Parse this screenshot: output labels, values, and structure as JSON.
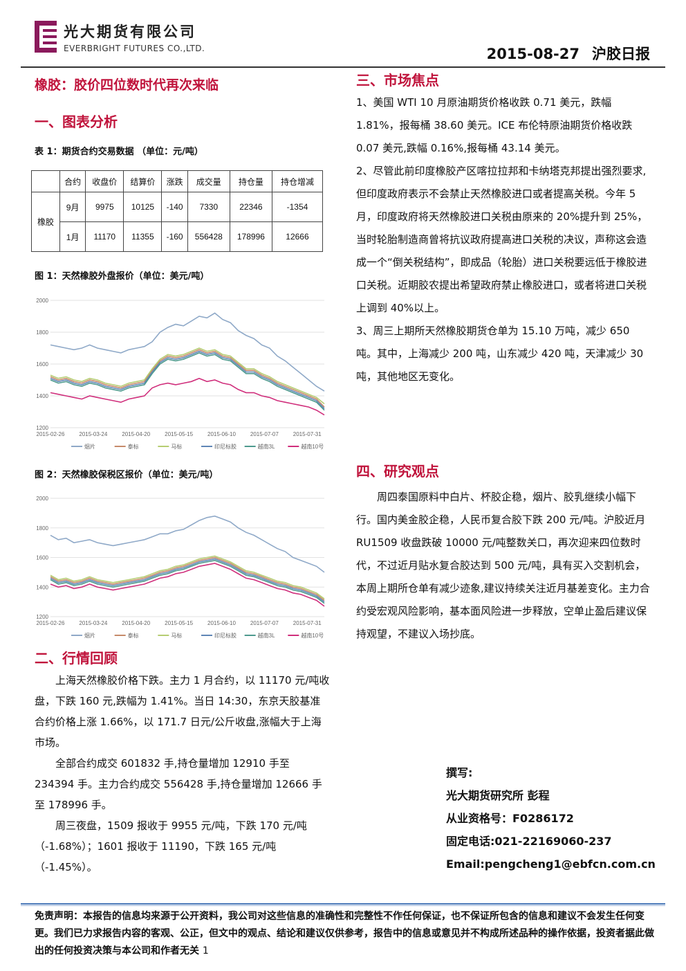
{
  "header": {
    "company_cn": "光大期货有限公司",
    "company_en": "EVERBRIGHT FUTURES CO.,LTD.",
    "date": "2015-08-27",
    "report_name": "沪胶日报",
    "brand_color": "#8b1a5c"
  },
  "main_title": "橡胶：胶价四位数时代再次来临",
  "section1": {
    "heading": "一、图表分析",
    "table_caption": "表 1：期货合约交易数据 （单位：元/吨）",
    "table": {
      "headers": [
        "合约",
        "收盘价",
        "结算价",
        "涨跌",
        "成交量",
        "持仓量",
        "持仓增减"
      ],
      "row_label": "橡胶",
      "rows": [
        [
          "9月",
          "9975",
          "10125",
          "-140",
          "7330",
          "22346",
          "-1354"
        ],
        [
          "1月",
          "11170",
          "11355",
          "-160",
          "556428",
          "178996",
          "12666"
        ]
      ]
    },
    "figure1_caption": "图 1：天然橡胶外盘报价（单位：美元/吨）",
    "figure2_caption": "图 2：天然橡胶保税区报价（单位：美元/吨）"
  },
  "chart_data": [
    {
      "type": "line",
      "title": "",
      "ylim": [
        1200,
        2000
      ],
      "yticks": [
        "2000",
        "1800",
        "1600",
        "1400",
        "1200"
      ],
      "xticks": [
        "2015-02-26",
        "2015-03-24",
        "2015-04-20",
        "2015-05-15",
        "2015-06-10",
        "2015-07-07",
        "2015-07-31"
      ],
      "legend_position": "bottom",
      "series": [
        {
          "name": "烟片",
          "color": "#8fa9c8",
          "values": [
            1720,
            1710,
            1700,
            1690,
            1700,
            1720,
            1700,
            1690,
            1680,
            1670,
            1690,
            1700,
            1710,
            1740,
            1800,
            1830,
            1850,
            1840,
            1870,
            1900,
            1890,
            1920,
            1880,
            1860,
            1810,
            1780,
            1760,
            1720,
            1700,
            1650,
            1620,
            1580,
            1540,
            1500,
            1460,
            1430
          ]
        },
        {
          "name": "泰标",
          "color": "#c68a6a",
          "values": [
            1520,
            1500,
            1510,
            1490,
            1480,
            1500,
            1490,
            1470,
            1460,
            1450,
            1470,
            1480,
            1490,
            1560,
            1620,
            1650,
            1640,
            1650,
            1670,
            1690,
            1670,
            1680,
            1650,
            1640,
            1600,
            1560,
            1560,
            1530,
            1510,
            1480,
            1460,
            1440,
            1420,
            1400,
            1380,
            1330
          ]
        },
        {
          "name": "马标",
          "color": "#b6cd72",
          "values": [
            1530,
            1510,
            1520,
            1500,
            1490,
            1510,
            1500,
            1480,
            1470,
            1460,
            1480,
            1490,
            1500,
            1570,
            1630,
            1660,
            1650,
            1660,
            1680,
            1700,
            1680,
            1690,
            1660,
            1650,
            1610,
            1570,
            1570,
            1540,
            1520,
            1490,
            1470,
            1450,
            1430,
            1410,
            1390,
            1350
          ]
        },
        {
          "name": "印尼标胶",
          "color": "#5f86b6",
          "values": [
            1510,
            1490,
            1500,
            1480,
            1470,
            1490,
            1480,
            1460,
            1450,
            1440,
            1460,
            1470,
            1480,
            1550,
            1610,
            1640,
            1630,
            1640,
            1660,
            1680,
            1660,
            1670,
            1640,
            1630,
            1590,
            1550,
            1550,
            1520,
            1500,
            1470,
            1450,
            1430,
            1410,
            1390,
            1370,
            1320
          ]
        },
        {
          "name": "越南3L",
          "color": "#4e9a8e",
          "values": [
            1500,
            1480,
            1490,
            1470,
            1460,
            1480,
            1470,
            1450,
            1440,
            1430,
            1450,
            1460,
            1470,
            1540,
            1600,
            1630,
            1620,
            1630,
            1650,
            1670,
            1650,
            1660,
            1630,
            1620,
            1580,
            1540,
            1540,
            1510,
            1490,
            1460,
            1440,
            1420,
            1400,
            1380,
            1360,
            1310
          ]
        },
        {
          "name": "越南10号",
          "color": "#d02f7c",
          "values": [
            1420,
            1410,
            1400,
            1390,
            1380,
            1400,
            1390,
            1380,
            1370,
            1360,
            1380,
            1390,
            1400,
            1450,
            1470,
            1480,
            1470,
            1480,
            1490,
            1510,
            1490,
            1500,
            1480,
            1470,
            1440,
            1420,
            1420,
            1400,
            1390,
            1370,
            1360,
            1350,
            1340,
            1330,
            1310,
            1280
          ]
        }
      ]
    },
    {
      "type": "line",
      "title": "",
      "ylim": [
        1200,
        2000
      ],
      "yticks": [
        "2000",
        "1800",
        "1600",
        "1400",
        "1200"
      ],
      "xticks": [
        "2015-02-26",
        "2015-03-24",
        "2015-04-20",
        "2015-05-15",
        "2015-06-10",
        "2015-07-07",
        "2015-07-31"
      ],
      "legend_position": "bottom",
      "series": [
        {
          "name": "烟片",
          "color": "#8fa9c8",
          "values": [
            1750,
            1720,
            1730,
            1700,
            1710,
            1720,
            1700,
            1690,
            1680,
            1690,
            1700,
            1710,
            1720,
            1740,
            1760,
            1760,
            1780,
            1790,
            1820,
            1850,
            1870,
            1880,
            1860,
            1840,
            1800,
            1770,
            1750,
            1720,
            1690,
            1660,
            1640,
            1600,
            1580,
            1560,
            1540,
            1500
          ]
        },
        {
          "name": "泰标",
          "color": "#c68a6a",
          "values": [
            1470,
            1440,
            1450,
            1430,
            1440,
            1460,
            1440,
            1430,
            1420,
            1430,
            1440,
            1450,
            1460,
            1480,
            1500,
            1510,
            1530,
            1540,
            1560,
            1580,
            1590,
            1600,
            1580,
            1560,
            1530,
            1500,
            1490,
            1470,
            1450,
            1430,
            1420,
            1400,
            1390,
            1370,
            1350,
            1310
          ]
        },
        {
          "name": "马标",
          "color": "#b6cd72",
          "values": [
            1480,
            1450,
            1460,
            1440,
            1450,
            1470,
            1450,
            1440,
            1430,
            1440,
            1450,
            1460,
            1470,
            1490,
            1510,
            1520,
            1540,
            1550,
            1570,
            1590,
            1600,
            1610,
            1590,
            1570,
            1540,
            1510,
            1500,
            1480,
            1460,
            1440,
            1430,
            1410,
            1400,
            1380,
            1360,
            1320
          ]
        },
        {
          "name": "印尼标胶",
          "color": "#5f86b6",
          "values": [
            1460,
            1430,
            1440,
            1420,
            1430,
            1450,
            1430,
            1420,
            1410,
            1420,
            1430,
            1440,
            1450,
            1470,
            1490,
            1500,
            1520,
            1530,
            1550,
            1570,
            1580,
            1590,
            1570,
            1550,
            1520,
            1490,
            1480,
            1460,
            1440,
            1420,
            1410,
            1390,
            1380,
            1360,
            1340,
            1300
          ]
        },
        {
          "name": "越南3L",
          "color": "#4e9a8e",
          "values": [
            1450,
            1420,
            1430,
            1410,
            1420,
            1440,
            1420,
            1410,
            1400,
            1410,
            1420,
            1430,
            1440,
            1460,
            1480,
            1490,
            1510,
            1520,
            1540,
            1560,
            1570,
            1580,
            1560,
            1540,
            1510,
            1480,
            1470,
            1450,
            1430,
            1410,
            1400,
            1380,
            1370,
            1350,
            1330,
            1290
          ]
        },
        {
          "name": "越南10号",
          "color": "#d02f7c",
          "values": [
            1420,
            1400,
            1410,
            1390,
            1400,
            1420,
            1400,
            1390,
            1380,
            1390,
            1400,
            1410,
            1420,
            1440,
            1460,
            1470,
            1490,
            1500,
            1520,
            1540,
            1550,
            1560,
            1540,
            1520,
            1490,
            1460,
            1450,
            1430,
            1410,
            1390,
            1380,
            1360,
            1350,
            1330,
            1310,
            1270
          ]
        }
      ]
    }
  ],
  "section2": {
    "heading": "二、行情回顾",
    "paragraphs": [
      "上海天然橡胶价格下跌。主力 1 月合约，以 11170 元/吨收盘，下跌 160 元,跌幅为 1.41%。当日 14:30，东京天胶基准合约价格上涨 1.66%，以 171.7 日元/公斤收盘,涨幅大于上海市场。",
      "全部合约成交 601832 手,持仓量增加 12910 手至 234394 手。主力合约成交 556428 手,持仓量增加 12666 手至 178996 手。",
      "周三夜盘，1509 报收于 9955 元/吨，下跌 170 元/吨（-1.68%）；1601 报收于 11190，下跌 165 元/吨（-1.45%）。"
    ]
  },
  "section3": {
    "heading": "三、市场焦点",
    "paragraphs": [
      "1、美国 WTI 10 月原油期货价格收跌 0.71 美元，跌幅 1.81%，报每桶 38.60 美元。ICE 布伦特原油期货价格收跌 0.07 美元,跌幅 0.16%,报每桶 43.14 美元。",
      "2、尽管此前印度橡胶产区喀拉拉邦和卡纳塔克邦提出强烈要求,但印度政府表示不会禁止天然橡胶进口或者提高关税。今年 5 月，印度政府将天然橡胶进口关税由原来的 20%提升到 25%，当时轮胎制造商曾将抗议政府提高进口关税的决议，声称这会造成一个“倒关税结构”，即成品（轮胎）进口关税要远低于橡胶进口关税。近期胶农提出希望政府禁止橡胶进口，或者将进口关税上调到 40%以上。",
      "3、周三上期所天然橡胶期货仓单为 15.10 万吨，减少 650 吨。其中，上海减少 200 吨，山东减少 420 吨，天津减少 30 吨，其他地区无变化。"
    ]
  },
  "section4": {
    "heading": "四、研究观点",
    "paragraph": "周四泰国原料中白片、杯胶企稳，烟片、胶乳继续小幅下行。国内美金胶企稳，人民币复合胶下跌 200 元/吨。沪胶近月 RU1509 收盘跌破 10000 元/吨整数关口，再次迎来四位数时代，不过近月贴水复合胶达到 500 元/吨，具有买入交割机会，本周上期所仓单有减少迹象,建议持续关注近月基差变化。主力合约受宏观风险影响，基本面风险进一步释放，空单止盈后建议保持观望，不建议入场抄底。"
  },
  "author": {
    "label": "撰写:",
    "name": "光大期货研究所 彭程",
    "license": "从业资格号：F0286172",
    "phone": "固定电话:021-22169060-237",
    "email": "Email:pengcheng1@ebfcn.com.cn"
  },
  "footer": {
    "disclaimer": "免责声明：本报告的信息均来源于公开资料，我公司对这些信息的准确性和完整性不作任何保证，也不保证所包含的信息和建议不会发生任何变更。我们已力求报告内容的客观、公正，但文中的观点、结论和建议仅供参考，报告中的信息或意见并不构成所述品种的操作依据，投资者据此做出的任何投资决策与本公司和作者无关",
    "page_number": "1"
  }
}
